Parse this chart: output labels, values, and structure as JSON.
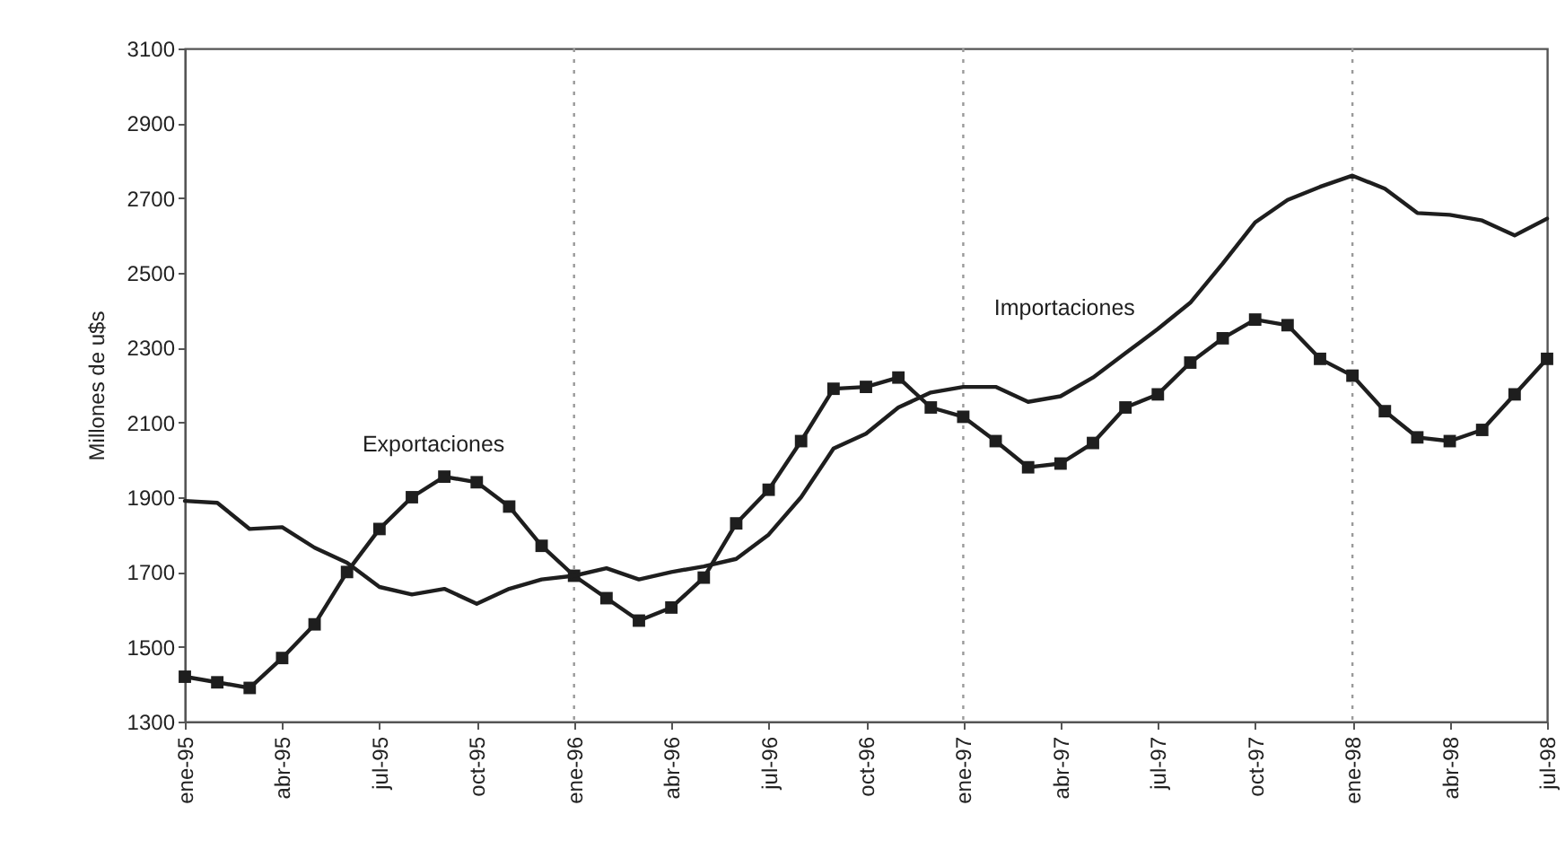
{
  "chart_data": {
    "type": "line",
    "ylabel": "Millones de u$s",
    "categories": [
      "ene-95",
      null,
      null,
      "abr-95",
      null,
      null,
      "jul-95",
      null,
      null,
      "oct-95",
      null,
      null,
      "ene-96",
      null,
      null,
      "abr-96",
      null,
      null,
      "jul-96",
      null,
      null,
      "oct-96",
      null,
      null,
      "ene-97",
      null,
      null,
      "abr-97",
      null,
      null,
      "jul-97",
      null,
      null,
      "oct-97",
      null,
      null,
      "ene-98",
      null,
      null,
      "abr-98",
      null,
      null,
      "jul-98"
    ],
    "series": [
      {
        "name": "Exportaciones",
        "color": "#1e1e1e",
        "marker": "square",
        "values": [
          1420,
          1405,
          1390,
          1470,
          1560,
          1700,
          1815,
          1900,
          1955,
          1940,
          1875,
          1770,
          1690,
          1630,
          1570,
          1605,
          1685,
          1830,
          1920,
          2050,
          2190,
          2195,
          2220,
          2140,
          2115,
          2050,
          1980,
          1990,
          2045,
          2140,
          2175,
          2260,
          2325,
          2375,
          2360,
          2270,
          2225,
          2130,
          2060,
          2050,
          2080,
          2175,
          2270
        ]
      },
      {
        "name": "Importaciones",
        "color": "#1e1e1e",
        "marker": "none",
        "values": [
          1890,
          1885,
          1815,
          1820,
          1765,
          1725,
          1660,
          1640,
          1655,
          1615,
          1655,
          1680,
          1690,
          1710,
          1680,
          1700,
          1715,
          1735,
          1800,
          1900,
          2030,
          2070,
          2140,
          2180,
          2195,
          2195,
          2155,
          2170,
          2220,
          2285,
          2350,
          2420,
          2525,
          2635,
          2695,
          2730,
          2760,
          2725,
          2660,
          2655,
          2640,
          2600,
          2645
        ]
      }
    ],
    "ylim": [
      1300,
      3100
    ],
    "yticks": [
      1300,
      1500,
      1700,
      1900,
      2100,
      2300,
      2500,
      2700,
      2900,
      3100
    ],
    "ref_lines": [
      {
        "axis": "x",
        "value": "ene-96",
        "color": "#9a9a9a",
        "line_style": "dotted"
      },
      {
        "axis": "x",
        "value": "ene-97",
        "color": "#9a9a9a",
        "line_style": "dotted"
      },
      {
        "axis": "x",
        "value": "ene-98",
        "color": "#9a9a9a",
        "line_style": "dotted"
      }
    ]
  }
}
